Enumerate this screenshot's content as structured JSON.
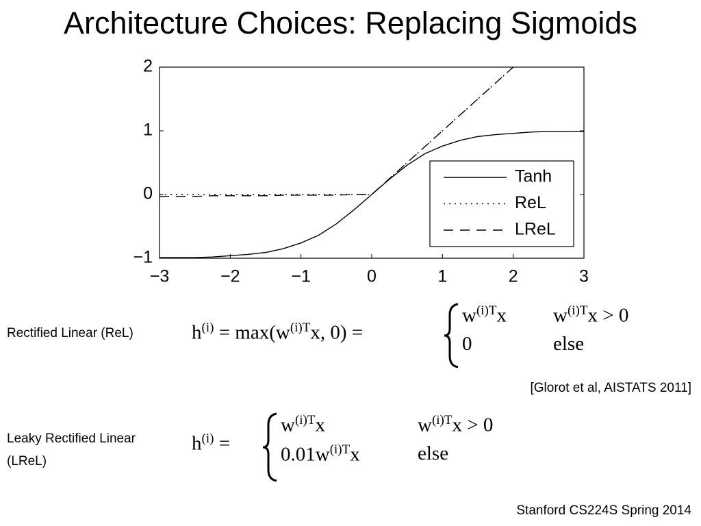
{
  "slide": {
    "title": "Architecture Choices: Replacing Sigmoids",
    "rel": {
      "label": "Rectified Linear (ReL)",
      "lhs": [
        {
          "text": "h"
        },
        {
          "sup": "(i)"
        },
        {
          "text": " = max(w"
        },
        {
          "sup": "(i)T"
        },
        {
          "text": "x, 0) ="
        }
      ],
      "cases": [
        [
          [
            {
              "text": "w"
            },
            {
              "sup": "(i)T"
            },
            {
              "text": "x"
            }
          ],
          [
            {
              "text": "w"
            },
            {
              "sup": "(i)T"
            },
            {
              "text": "x > 0"
            }
          ]
        ],
        [
          [
            {
              "text": "0"
            }
          ],
          [
            {
              "text": "else"
            }
          ]
        ]
      ]
    },
    "citation": "[Glorot et al, AISTATS 2011]",
    "lrel": {
      "label_lines": [
        "Leaky Rectified Linear",
        "(LReL)"
      ],
      "lhs": [
        {
          "text": "h"
        },
        {
          "sup": "(i)"
        },
        {
          "text": " ="
        }
      ],
      "cases": [
        [
          [
            {
              "text": "w"
            },
            {
              "sup": "(i)T"
            },
            {
              "text": "x"
            }
          ],
          [
            {
              "text": "w"
            },
            {
              "sup": "(i)T"
            },
            {
              "text": "x > 0"
            }
          ]
        ],
        [
          [
            {
              "text": "0.01w"
            },
            {
              "sup": "(i)T"
            },
            {
              "text": "x"
            }
          ],
          [
            {
              "text": "else"
            }
          ]
        ]
      ]
    },
    "footer": "Stanford CS224S Spring 2014"
  },
  "chart_data": {
    "type": "line",
    "x": [
      -3,
      -2.75,
      -2.5,
      -2.25,
      -2,
      -1.75,
      -1.5,
      -1.25,
      -1,
      -0.75,
      -0.5,
      -0.25,
      0,
      0.25,
      0.5,
      0.75,
      1,
      1.25,
      1.5,
      1.75,
      2,
      2.25,
      2.5,
      2.75,
      3
    ],
    "series": [
      {
        "name": "Tanh",
        "color": "#000000",
        "dash": "solid",
        "values": [
          -0.99,
          -0.99,
          -0.99,
          -0.98,
          -0.96,
          -0.94,
          -0.91,
          -0.85,
          -0.76,
          -0.64,
          -0.46,
          -0.24,
          0,
          0.24,
          0.46,
          0.64,
          0.76,
          0.85,
          0.91,
          0.94,
          0.96,
          0.98,
          0.99,
          0.99,
          0.99
        ]
      },
      {
        "name": "ReL",
        "color": "#000000",
        "dash": "dotted",
        "values": [
          0,
          0,
          0,
          0,
          0,
          0,
          0,
          0,
          0,
          0,
          0,
          0,
          0,
          0.25,
          0.5,
          0.75,
          1,
          1.25,
          1.5,
          1.75,
          2,
          null,
          null,
          null,
          null
        ]
      },
      {
        "name": "LReL",
        "color": "#000000",
        "dash": "dashed",
        "values": [
          -0.03,
          -0.03,
          -0.03,
          -0.02,
          -0.02,
          -0.02,
          -0.02,
          -0.01,
          -0.01,
          -0.01,
          -0.01,
          0,
          0,
          0.25,
          0.5,
          0.75,
          1,
          1.25,
          1.5,
          1.75,
          2,
          null,
          null,
          null,
          null
        ]
      }
    ],
    "xlim": [
      -3,
      3
    ],
    "ylim": [
      -1,
      2
    ],
    "xticks": [
      {
        "value": -3,
        "label": "−3"
      },
      {
        "value": -2,
        "label": "−2"
      },
      {
        "value": -1,
        "label": "−1"
      },
      0,
      1,
      2,
      3
    ],
    "yticks": [
      {
        "value": -1,
        "label": "−1"
      },
      0,
      1,
      2
    ],
    "legend": "right"
  }
}
